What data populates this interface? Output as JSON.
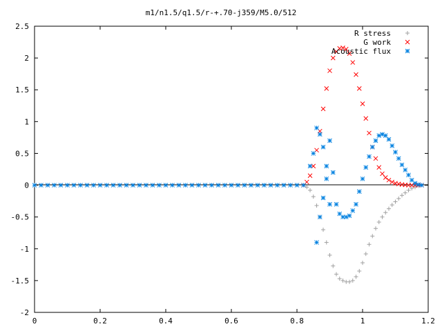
{
  "chart_data": {
    "type": "scatter",
    "title": "m1/n1.5/q1.5/r-+.70-j359/M5.0/512",
    "xlabel": "",
    "ylabel": "",
    "xlim": [
      0,
      1.2
    ],
    "ylim": [
      -2,
      2.5
    ],
    "xticks": [
      "0",
      "0.2",
      "0.4",
      "0.6",
      "0.8",
      "1",
      "1.2"
    ],
    "yticks": [
      "2.5",
      "2",
      "1.5",
      "1",
      "0.5",
      "0",
      "-0.5",
      "-1",
      "-1.5",
      "-2"
    ],
    "grid": false,
    "legend_position": "top-right",
    "series": [
      {
        "name": "R stress",
        "marker": "plus",
        "color": "#a0a0a0",
        "x": [
          0.82,
          0.83,
          0.84,
          0.85,
          0.86,
          0.87,
          0.88,
          0.89,
          0.9,
          0.91,
          0.92,
          0.93,
          0.94,
          0.95,
          0.96,
          0.97,
          0.98,
          0.99,
          1.0,
          1.01,
          1.02,
          1.03,
          1.04,
          1.05,
          1.06,
          1.07,
          1.08,
          1.09,
          1.1,
          1.11,
          1.12,
          1.13,
          1.14,
          1.15,
          1.16,
          1.17,
          1.18
        ],
        "y": [
          0,
          -0.03,
          -0.08,
          -0.18,
          -0.32,
          -0.5,
          -0.7,
          -0.9,
          -1.1,
          -1.27,
          -1.4,
          -1.47,
          -1.5,
          -1.52,
          -1.52,
          -1.5,
          -1.44,
          -1.35,
          -1.22,
          -1.08,
          -0.93,
          -0.8,
          -0.68,
          -0.58,
          -0.5,
          -0.43,
          -0.37,
          -0.31,
          -0.26,
          -0.21,
          -0.16,
          -0.12,
          -0.08,
          -0.05,
          -0.03,
          -0.01,
          0
        ]
      },
      {
        "name": "G work",
        "marker": "cross",
        "color": "#ff0000",
        "x": [
          0.82,
          0.83,
          0.84,
          0.85,
          0.86,
          0.87,
          0.88,
          0.89,
          0.9,
          0.91,
          0.92,
          0.93,
          0.94,
          0.95,
          0.96,
          0.97,
          0.98,
          0.99,
          1.0,
          1.01,
          1.02,
          1.03,
          1.04,
          1.05,
          1.06,
          1.07,
          1.08,
          1.09,
          1.1,
          1.11,
          1.12,
          1.13,
          1.14,
          1.15,
          1.16,
          1.17,
          1.18
        ],
        "y": [
          0,
          0.05,
          0.15,
          0.3,
          0.55,
          0.85,
          1.2,
          1.52,
          1.8,
          2.0,
          2.1,
          2.15,
          2.16,
          2.14,
          2.07,
          1.93,
          1.74,
          1.52,
          1.28,
          1.05,
          0.82,
          0.6,
          0.42,
          0.28,
          0.18,
          0.12,
          0.08,
          0.05,
          0.03,
          0.02,
          0.01,
          0.005,
          0,
          0,
          0,
          0,
          0
        ]
      },
      {
        "name": "Acoustic flux",
        "marker": "star",
        "color": "#0080e0",
        "x": [
          0,
          0.02,
          0.04,
          0.06,
          0.08,
          0.1,
          0.12,
          0.14,
          0.16,
          0.18,
          0.2,
          0.22,
          0.24,
          0.26,
          0.28,
          0.3,
          0.32,
          0.34,
          0.36,
          0.38,
          0.4,
          0.42,
          0.44,
          0.46,
          0.48,
          0.5,
          0.52,
          0.54,
          0.56,
          0.58,
          0.6,
          0.62,
          0.64,
          0.66,
          0.68,
          0.7,
          0.72,
          0.74,
          0.76,
          0.78,
          0.8,
          0.82,
          0.84,
          0.85,
          0.86,
          0.86,
          0.87,
          0.87,
          0.88,
          0.88,
          0.89,
          0.89,
          0.9,
          0.9,
          0.91,
          0.92,
          0.93,
          0.94,
          0.95,
          0.96,
          0.97,
          0.98,
          0.99,
          1.0,
          1.01,
          1.02,
          1.03,
          1.04,
          1.05,
          1.06,
          1.07,
          1.08,
          1.09,
          1.1,
          1.11,
          1.12,
          1.13,
          1.14,
          1.15,
          1.16,
          1.17,
          1.18
        ],
        "y": [
          0,
          0,
          0,
          0,
          0,
          0,
          0,
          0,
          0,
          0,
          0,
          0,
          0,
          0,
          0,
          0,
          0,
          0,
          0,
          0,
          0,
          0,
          0,
          0,
          0,
          0,
          0,
          0,
          0,
          0,
          0,
          0,
          0,
          0,
          0,
          0,
          0,
          0,
          0,
          0,
          0,
          0,
          0.3,
          0.5,
          0.9,
          -0.9,
          0.8,
          -0.5,
          0.6,
          -0.2,
          0.3,
          0.1,
          0.7,
          -0.3,
          0.2,
          -0.3,
          -0.45,
          -0.5,
          -0.5,
          -0.48,
          -0.4,
          -0.3,
          -0.1,
          0.1,
          0.28,
          0.45,
          0.6,
          0.7,
          0.78,
          0.8,
          0.78,
          0.72,
          0.62,
          0.52,
          0.42,
          0.32,
          0.24,
          0.16,
          0.08,
          0.03,
          0.01,
          0
        ]
      }
    ]
  }
}
